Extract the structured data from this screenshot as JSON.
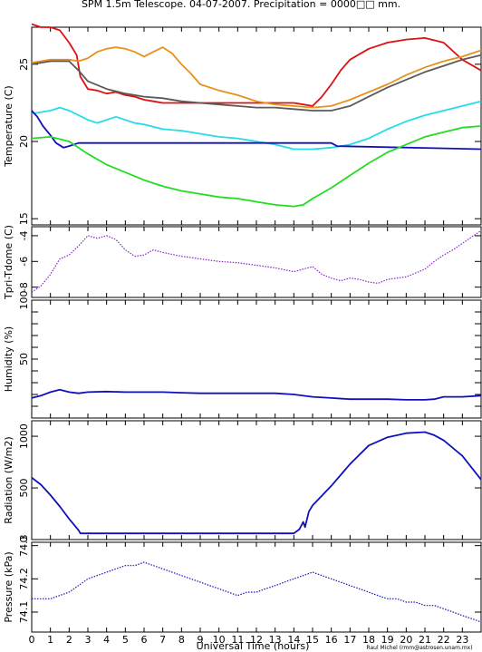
{
  "title": "SPM 1.5m Telescope. 04-07-2007. Precipitation = 0000□□ mm.",
  "xlabel": "Universal Time (hours)",
  "credit": "Raul Michel (rmm@astrosen.unam.mx)",
  "colors": {
    "axis": "#000000",
    "red": "#dd1111",
    "orange": "#e8901c",
    "gray": "#5a5a5a",
    "cyan": "#22dde8",
    "blue": "#1111bb",
    "green": "#22dd22",
    "purple": "#8822cc"
  },
  "chart_data": [
    {
      "type": "line",
      "ylabel": "Temperature (C)",
      "ylim": [
        14.6,
        27.4
      ],
      "yticks": [
        15,
        20,
        25
      ],
      "xlim": [
        0,
        24
      ],
      "xticks": [
        0,
        1,
        2,
        3,
        4,
        5,
        6,
        7,
        8,
        9,
        10,
        11,
        12,
        13,
        14,
        15,
        16,
        17,
        18,
        19,
        20,
        21,
        22,
        23
      ],
      "series": [
        {
          "color": "red",
          "x": [
            0,
            0.5,
            1,
            1.5,
            2,
            2.4,
            2.6,
            3,
            3.5,
            4,
            4.5,
            5,
            5.5,
            6,
            6.5,
            7,
            8,
            9,
            10,
            11,
            12,
            13,
            14,
            14.5,
            15,
            15.5,
            16,
            16.5,
            17,
            18,
            19,
            20,
            21,
            22,
            23,
            24
          ],
          "values": [
            27.6,
            27.4,
            27.4,
            27.2,
            26.4,
            25.6,
            24.2,
            23.4,
            23.3,
            23.1,
            23.2,
            23.0,
            22.9,
            22.7,
            22.6,
            22.5,
            22.5,
            22.5,
            22.5,
            22.5,
            22.5,
            22.5,
            22.5,
            22.4,
            22.3,
            22.9,
            23.7,
            24.6,
            25.3,
            26.0,
            26.4,
            26.6,
            26.7,
            26.4,
            25.3,
            24.6
          ]
        },
        {
          "color": "orange",
          "x": [
            0,
            1,
            2,
            2.5,
            3,
            3.5,
            4,
            4.5,
            5,
            5.5,
            6,
            6.5,
            7,
            7.5,
            8,
            8.5,
            9,
            10,
            11,
            12,
            13,
            14,
            15,
            16,
            17,
            18,
            19,
            20,
            21,
            22,
            23,
            24
          ],
          "values": [
            25.1,
            25.3,
            25.3,
            25.2,
            25.4,
            25.8,
            26.0,
            26.1,
            26.0,
            25.8,
            25.5,
            25.8,
            26.1,
            25.7,
            25.0,
            24.4,
            23.7,
            23.3,
            23.0,
            22.6,
            22.4,
            22.3,
            22.2,
            22.3,
            22.7,
            23.2,
            23.7,
            24.3,
            24.8,
            25.2,
            25.5,
            25.9
          ]
        },
        {
          "color": "gray",
          "x": [
            0,
            1,
            2,
            2.5,
            3,
            4,
            5,
            6,
            7,
            8,
            9,
            10,
            11,
            12,
            13,
            14,
            15,
            16,
            17,
            18,
            19,
            20,
            21,
            22,
            23,
            24
          ],
          "values": [
            25.0,
            25.2,
            25.2,
            24.6,
            23.9,
            23.4,
            23.1,
            22.9,
            22.8,
            22.6,
            22.5,
            22.4,
            22.3,
            22.2,
            22.2,
            22.1,
            22.0,
            22.0,
            22.3,
            22.9,
            23.5,
            24.0,
            24.5,
            24.9,
            25.3,
            25.6
          ]
        },
        {
          "color": "cyan",
          "x": [
            0,
            1,
            1.5,
            2,
            2.5,
            3,
            3.5,
            4,
            4.5,
            5,
            5.5,
            6,
            7,
            8,
            9,
            10,
            11,
            12,
            13,
            14,
            15,
            16,
            17,
            18,
            19,
            20,
            21,
            22,
            23,
            24
          ],
          "values": [
            21.8,
            22.0,
            22.2,
            22.0,
            21.7,
            21.4,
            21.2,
            21.4,
            21.6,
            21.4,
            21.2,
            21.1,
            20.8,
            20.7,
            20.5,
            20.3,
            20.2,
            20.0,
            19.8,
            19.5,
            19.5,
            19.6,
            19.8,
            20.2,
            20.8,
            21.3,
            21.7,
            22.0,
            22.3,
            22.6
          ]
        },
        {
          "color": "blue",
          "x": [
            0,
            0.3,
            0.6,
            1,
            1.3,
            1.7,
            2,
            2.5,
            3,
            14,
            16,
            16.3,
            24
          ],
          "values": [
            22.0,
            21.6,
            21.0,
            20.4,
            19.9,
            19.6,
            19.7,
            19.9,
            19.9,
            19.9,
            19.9,
            19.7,
            19.5
          ]
        },
        {
          "color": "green",
          "x": [
            0,
            1,
            2,
            3,
            4,
            5,
            6,
            7,
            8,
            9,
            10,
            11,
            12,
            13,
            14,
            14.5,
            15,
            16,
            17,
            18,
            19,
            20,
            21,
            22,
            23,
            24
          ],
          "values": [
            20.2,
            20.3,
            20.0,
            19.2,
            18.5,
            18.0,
            17.5,
            17.1,
            16.8,
            16.6,
            16.4,
            16.3,
            16.1,
            15.9,
            15.8,
            15.9,
            16.3,
            17.0,
            17.8,
            18.6,
            19.3,
            19.8,
            20.3,
            20.6,
            20.9,
            21.0
          ]
        }
      ]
    },
    {
      "type": "scatter",
      "ylabel": "Tpri-Tdome (C)",
      "ylim": [
        -8.8,
        -3.3
      ],
      "yticks": [
        -8,
        -6,
        -4
      ],
      "series": [
        {
          "color": "purple",
          "x": [
            0,
            0.5,
            1,
            1.5,
            2,
            2.5,
            3,
            3.5,
            4,
            4.5,
            5,
            5.5,
            6,
            6.5,
            7,
            8,
            9,
            10,
            11,
            12,
            13,
            14,
            14.5,
            15,
            15.5,
            16,
            16.5,
            17,
            17.5,
            18,
            18.5,
            19,
            19.5,
            20,
            20.5,
            21,
            21.5,
            22,
            22.5,
            23,
            23.5,
            24
          ],
          "values": [
            -8.4,
            -7.9,
            -7.0,
            -5.8,
            -5.5,
            -4.8,
            -4.0,
            -4.2,
            -4.0,
            -4.3,
            -5.1,
            -5.6,
            -5.5,
            -5.1,
            -5.3,
            -5.6,
            -5.8,
            -6.0,
            -6.1,
            -6.3,
            -6.5,
            -6.8,
            -6.6,
            -6.4,
            -7.0,
            -7.3,
            -7.5,
            -7.3,
            -7.4,
            -7.6,
            -7.7,
            -7.4,
            -7.3,
            -7.2,
            -6.9,
            -6.6,
            -6.0,
            -5.5,
            -5.1,
            -4.6,
            -4.1,
            -3.6
          ]
        }
      ]
    },
    {
      "type": "line",
      "ylabel": "Humidity (%)",
      "ylim": [
        0,
        100
      ],
      "yticks": [
        0,
        10,
        20,
        30,
        40,
        50,
        60,
        70,
        80,
        90,
        100
      ],
      "yticklabels": [
        "",
        "",
        "",
        "",
        "",
        "50",
        "",
        "",
        "",
        "",
        "100"
      ],
      "series": [
        {
          "color": "blue",
          "x": [
            0,
            0.5,
            1,
            1.5,
            2,
            2.5,
            3,
            4,
            5,
            6,
            7,
            8,
            9,
            10,
            11,
            12,
            13,
            14,
            15,
            16,
            17,
            18,
            19,
            20,
            21,
            21.5,
            22,
            23,
            24
          ],
          "values": [
            17,
            19,
            22,
            24,
            22,
            21,
            22,
            22.5,
            22,
            22,
            22,
            21.5,
            21,
            21,
            21,
            21,
            21,
            20,
            18,
            17,
            16,
            16,
            16,
            15.5,
            15.5,
            16,
            18,
            18,
            19
          ]
        }
      ]
    },
    {
      "type": "line",
      "ylabel": "Radiation (W/m2)",
      "ylim": [
        0,
        1150
      ],
      "yticks": [
        0,
        500,
        1000
      ],
      "yticklabels": [
        "0",
        "500",
        "1000"
      ],
      "series": [
        {
          "color": "blue",
          "x": [
            0,
            0.5,
            1,
            1.5,
            2,
            2.5,
            2.6,
            14,
            14.3,
            14.5,
            14.6,
            14.8,
            15,
            16,
            17,
            18,
            19,
            20,
            21,
            21.5,
            22,
            23,
            24
          ],
          "values": [
            600,
            530,
            430,
            320,
            200,
            90,
            60,
            60,
            100,
            170,
            120,
            270,
            330,
            520,
            730,
            910,
            990,
            1030,
            1040,
            1010,
            960,
            810,
            580
          ]
        }
      ]
    },
    {
      "type": "scatter",
      "ylabel": "Pressure (kPa)",
      "ylim": [
        74.04,
        74.31
      ],
      "yticks": [
        74.1,
        74.2,
        74.3
      ],
      "yticklabels": [
        "74.1",
        "74.2",
        "74.3"
      ],
      "series": [
        {
          "color": "blue",
          "x": [
            0,
            0.5,
            1,
            1.5,
            2,
            2.5,
            3,
            3.5,
            4,
            4.5,
            5,
            5.5,
            6,
            6.5,
            7,
            7.5,
            8,
            8.5,
            9,
            9.5,
            10,
            10.5,
            11,
            11.5,
            12,
            12.5,
            13,
            13.5,
            14,
            14.5,
            15,
            15.5,
            16,
            16.5,
            17,
            17.5,
            18,
            18.5,
            19,
            19.5,
            20,
            20.5,
            21,
            21.5,
            22,
            22.5,
            23,
            23.5,
            24
          ],
          "values": [
            74.14,
            74.14,
            74.14,
            74.15,
            74.16,
            74.18,
            74.2,
            74.21,
            74.22,
            74.23,
            74.24,
            74.24,
            74.25,
            74.24,
            74.23,
            74.22,
            74.21,
            74.2,
            74.19,
            74.18,
            74.17,
            74.16,
            74.15,
            74.16,
            74.16,
            74.17,
            74.18,
            74.19,
            74.2,
            74.21,
            74.22,
            74.21,
            74.2,
            74.19,
            74.18,
            74.17,
            74.16,
            74.15,
            74.14,
            74.14,
            74.13,
            74.13,
            74.12,
            74.12,
            74.11,
            74.1,
            74.09,
            74.08,
            74.07
          ]
        }
      ]
    }
  ]
}
